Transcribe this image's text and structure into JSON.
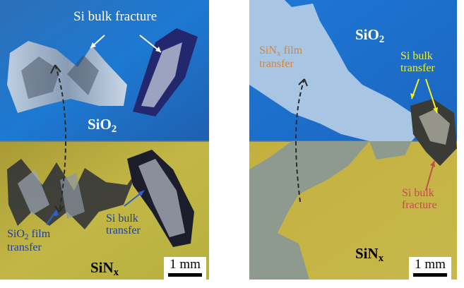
{
  "left_panel": {
    "top_region_label": {
      "main": "SiO",
      "sub": "2"
    },
    "bottom_region_label": {
      "main": "SiN",
      "sub": "x"
    },
    "bulk_fracture_label": "Si bulk fracture",
    "film_transfer_label": {
      "line1_main": "SiO",
      "line1_sub": "2",
      "line1_rest": " film",
      "line2": "transfer"
    },
    "bulk_transfer_label": {
      "line1": "Si bulk",
      "line2": "transfer"
    },
    "scale_bar": "1 mm"
  },
  "right_panel": {
    "top_region_label": {
      "main": "SiO",
      "sub": "2"
    },
    "bottom_region_label": {
      "main": "SiN",
      "sub": "x"
    },
    "film_transfer_label": {
      "line1_main": "SiN",
      "line1_sub": "x",
      "line1_rest": " film",
      "line2": "transfer"
    },
    "bulk_transfer_label": {
      "line1": "Si bulk",
      "line2": "transfer"
    },
    "bulk_fracture_label": {
      "line1": "Si bulk",
      "line2": "fracture"
    },
    "scale_bar": "1 mm"
  },
  "colors": {
    "sio2_blue": "#1c6fc4",
    "sin_gold": "#b7aa3a",
    "white_label": "#ffffff",
    "blue_label": "#1f3ca8",
    "orange_label": "#c98a3c",
    "yellow_label": "#f0f020",
    "red_label": "#c0504d"
  }
}
